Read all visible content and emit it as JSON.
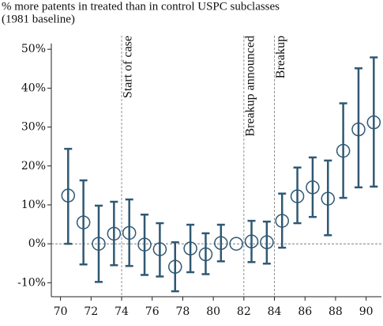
{
  "chart_data": {
    "type": "errorbar",
    "title": "% more patents in treated than in control USPC subclasses",
    "subtitle": "(1981 baseline)",
    "x": [
      70.5,
      71.5,
      72.5,
      73.5,
      74.5,
      75.5,
      76.5,
      77.5,
      78.5,
      79.5,
      80.5,
      81.5,
      82.5,
      83.5,
      84.5,
      85.5,
      86.5,
      87.5,
      88.5,
      89.5,
      90.5
    ],
    "series": [
      {
        "color": "#2f5873",
        "values": [
          12.4,
          5.5,
          0,
          2.6,
          2.8,
          -0.2,
          -1.4,
          -5.9,
          -1.2,
          -2.7,
          0.2,
          0,
          0.6,
          0.4,
          5.9,
          12.2,
          14.5,
          11.6,
          23.9,
          29.4,
          31.2
        ],
        "lower": [
          0,
          -5.3,
          -9.8,
          -5.5,
          -5.7,
          -8,
          -8.4,
          -12.2,
          -7.3,
          -7.8,
          -4.5,
          0,
          -4.7,
          -5.1,
          -1,
          5.3,
          6.9,
          2.2,
          11.8,
          14.5,
          14.7
        ],
        "upper": [
          24.4,
          16.3,
          9.8,
          10.8,
          11.4,
          7.5,
          5.3,
          0.4,
          4.9,
          2.7,
          4.9,
          0,
          5.9,
          5.7,
          12.9,
          19.6,
          22.2,
          21.4,
          36.1,
          45.1,
          47.9
        ]
      }
    ],
    "xlim": [
      69.4,
      91.0
    ],
    "xticks": [
      70,
      72,
      74,
      76,
      78,
      80,
      82,
      84,
      86,
      88,
      90
    ],
    "ylim": [
      -13.6,
      53.5
    ],
    "yticks": [
      {
        "value": -10,
        "label": "-10%"
      },
      {
        "value": 0,
        "label": "0%"
      },
      {
        "value": 10,
        "label": "10%"
      },
      {
        "value": 20,
        "label": "20%"
      },
      {
        "value": 30,
        "label": "30%"
      },
      {
        "value": 40,
        "label": "40%"
      },
      {
        "value": 50,
        "label": "50%"
      }
    ],
    "reference_line": 0,
    "annotations": [
      {
        "x": 74,
        "text": "Start of case"
      },
      {
        "x": 82,
        "text": "Breakup announced"
      },
      {
        "x": 84,
        "text": "Breakup"
      }
    ]
  }
}
